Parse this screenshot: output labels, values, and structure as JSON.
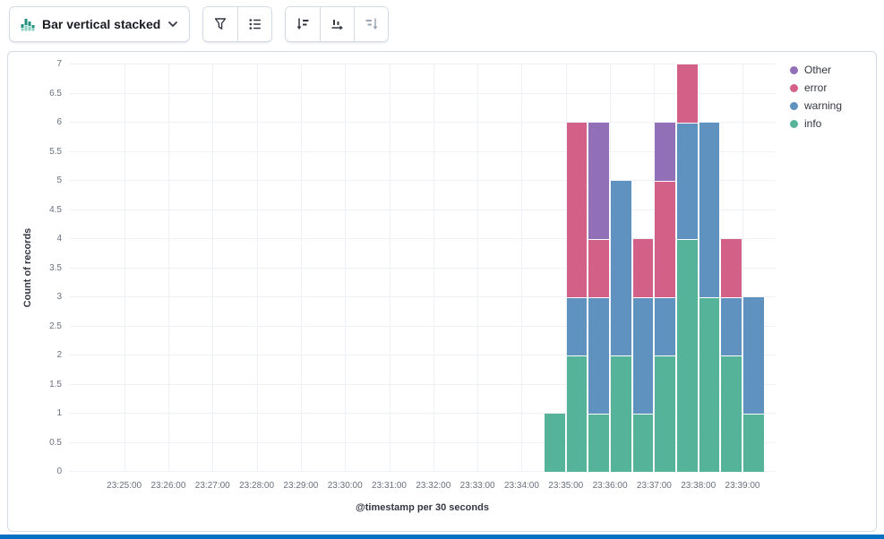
{
  "toolbar": {
    "chart_switcher_label": "Bar vertical stacked",
    "icons": {
      "chart_type": "bar-vertical-stacked-icon",
      "chevron": "chevron-down-icon",
      "group1": [
        "visual-options-icon",
        "legend-icon"
      ],
      "group2": [
        "left-axis-icon",
        "bottom-axis-icon",
        "right-axis-icon"
      ]
    }
  },
  "chart_data": {
    "type": "bar",
    "stacked": true,
    "orientation": "vertical",
    "title": "",
    "xlabel": "@timestamp per 30 seconds",
    "ylabel": "Count of records",
    "ylim": [
      0,
      7
    ],
    "grid": true,
    "legend_position": "right",
    "ytick_labels": [
      "0",
      "0.5",
      "1",
      "1.5",
      "2",
      "2.5",
      "3",
      "3.5",
      "4",
      "4.5",
      "5",
      "5.5",
      "6",
      "6.5",
      "7"
    ],
    "xtick_labels": [
      "23:25:00",
      "23:26:00",
      "23:27:00",
      "23:28:00",
      "23:29:00",
      "23:30:00",
      "23:31:00",
      "23:32:00",
      "23:33:00",
      "23:34:00",
      "23:35:00",
      "23:36:00",
      "23:37:00",
      "23:38:00",
      "23:39:00"
    ],
    "x_domain": {
      "start": "23:23:45",
      "end": "23:39:45"
    },
    "bucket_seconds": 30,
    "categories": [
      "23:34:30",
      "23:35:00",
      "23:35:30",
      "23:36:00",
      "23:36:30",
      "23:37:00",
      "23:37:30",
      "23:38:00",
      "23:38:30",
      "23:39:00"
    ],
    "series": [
      {
        "name": "info",
        "color": "#54B399",
        "values": [
          1,
          2,
          1,
          2,
          1,
          2,
          4,
          3,
          2,
          1
        ]
      },
      {
        "name": "warning",
        "color": "#6092C0",
        "values": [
          0,
          1,
          2,
          3,
          2,
          1,
          2,
          3,
          1,
          2
        ]
      },
      {
        "name": "error",
        "color": "#D36086",
        "values": [
          0,
          3,
          1,
          0,
          1,
          2,
          1,
          0,
          1,
          0
        ]
      },
      {
        "name": "Other",
        "color": "#9170B8",
        "values": [
          0,
          0,
          2,
          0,
          0,
          1,
          0,
          0,
          0,
          0
        ]
      }
    ],
    "legend": {
      "items": [
        {
          "label": "Other",
          "color": "#9170B8"
        },
        {
          "label": "error",
          "color": "#D36086"
        },
        {
          "label": "warning",
          "color": "#6092C0"
        },
        {
          "label": "info",
          "color": "#54B399"
        }
      ]
    }
  },
  "colors": {
    "panel_border": "#D3DAE6",
    "grid_line": "#EEF1F6",
    "axis_text": "#69707D",
    "axis_title": "#343741",
    "bottom_accent_bar": "#0071C2"
  }
}
